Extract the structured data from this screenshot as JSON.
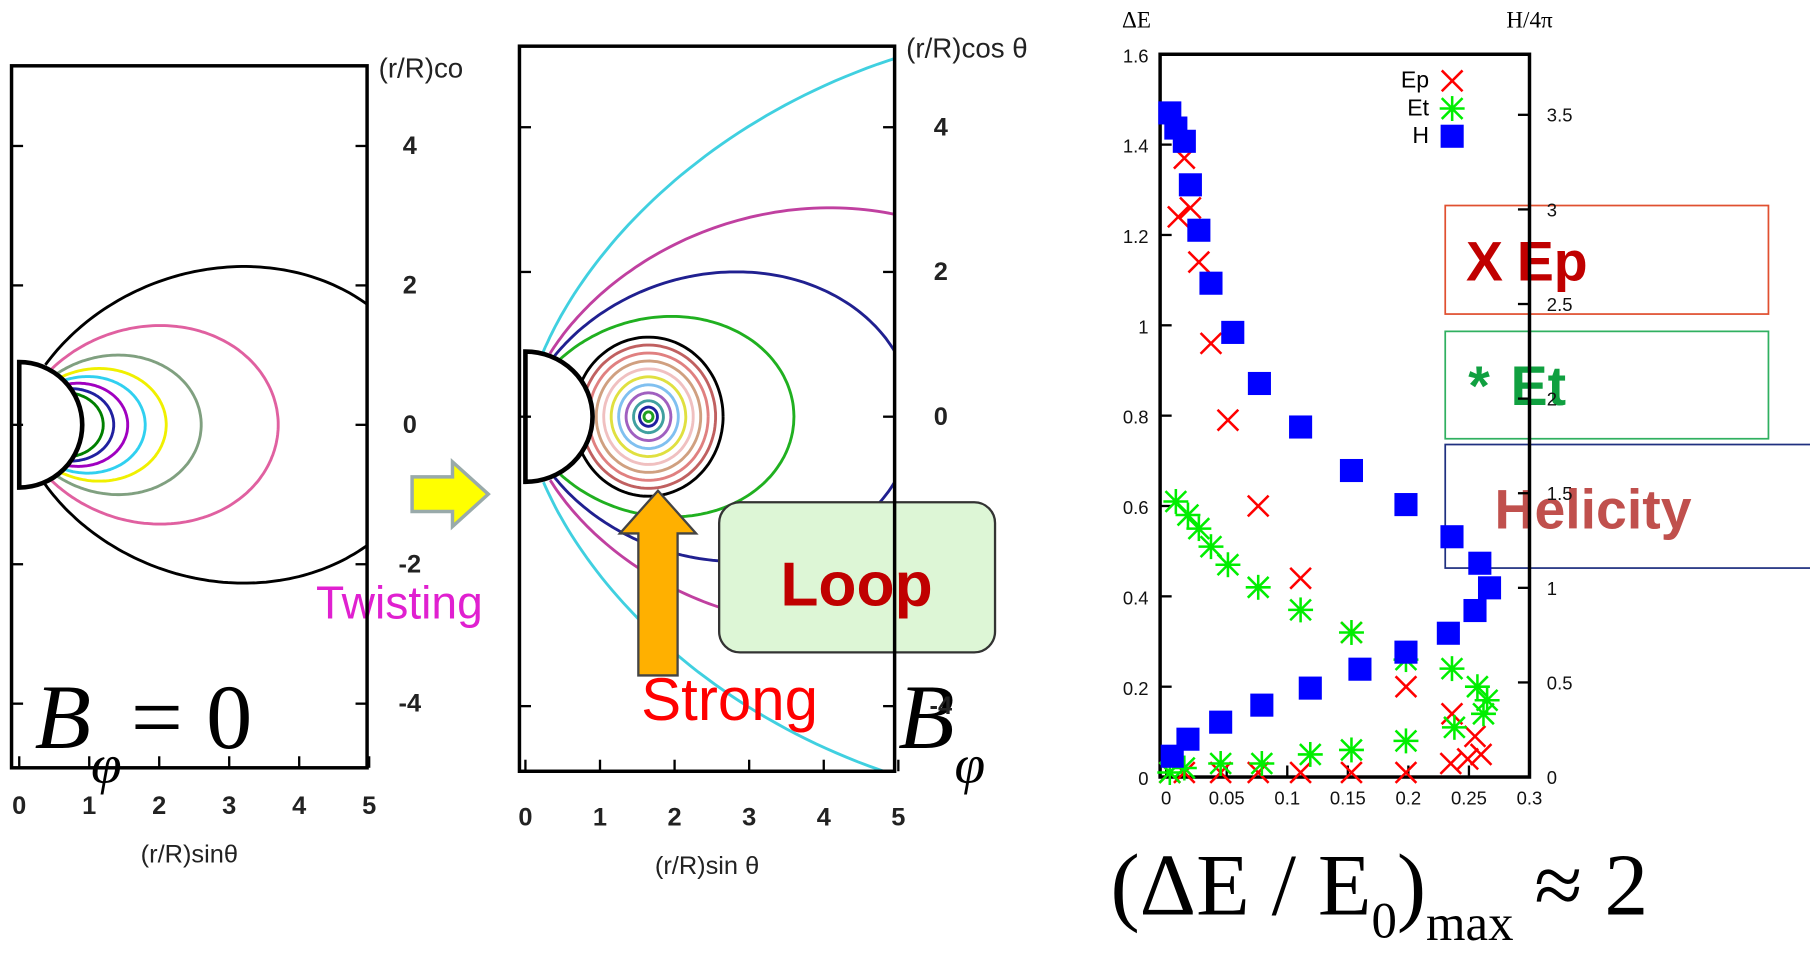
{
  "chart_data": [
    {
      "type": "contour",
      "xlabel": "(r/R)sinθ",
      "ylabel": "(r/R)co",
      "xlim": [
        -0.11,
        4.97
      ],
      "ylim": [
        -4.92,
        5.15
      ],
      "xticks": [
        0,
        1,
        2,
        3,
        4,
        5
      ],
      "yticks": [
        4,
        2,
        0,
        -2,
        -4
      ]
    },
    {
      "type": "contour",
      "xlabel": "(r/R)sin θ",
      "ylabel": "(r/R)cos θ",
      "xlim": [
        -0.08,
        4.95
      ],
      "ylim": [
        -4.9,
        5.12
      ],
      "xticks": [
        0,
        1,
        2,
        3,
        4,
        5
      ],
      "yticks": [
        4,
        2,
        0,
        -4
      ]
    },
    {
      "type": "scatter",
      "ylabel": "ΔE",
      "y2label": "H/4π",
      "legend": "upper right",
      "xlim": [
        -0.005,
        0.3
      ],
      "ylim": [
        0,
        1.6
      ],
      "y2lim": [
        0,
        3.82
      ],
      "xticks": [
        0,
        0.05,
        0.1,
        0.15,
        0.2,
        0.25,
        0.3
      ],
      "yticks": [
        0,
        0.2,
        0.4,
        0.6,
        0.8,
        1,
        1.2,
        1.4,
        1.6
      ],
      "y2ticks": [
        0,
        0.5,
        1,
        1.5,
        2,
        2.5,
        3,
        3.5
      ],
      "series": [
        {
          "name": "Ep",
          "color": "#ff0000",
          "marker": "x",
          "x": [
            0.01,
            0.015,
            0.02,
            0.027,
            0.037,
            0.051,
            0.076,
            0.111,
            0.153,
            0.198,
            0.236,
            0.255,
            0.26,
            0.249,
            0.235,
            0.198,
            0.153,
            0.111,
            0.076,
            0.045,
            0.015,
            0.003
          ],
          "values": [
            1.24,
            1.37,
            1.26,
            1.14,
            0.96,
            0.79,
            0.6,
            0.44,
            0.32,
            0.2,
            0.14,
            0.09,
            0.05,
            0.04,
            0.03,
            0.01,
            0.01,
            0.01,
            0.01,
            0.01,
            0.01,
            0.01
          ]
        },
        {
          "name": "Et",
          "color": "#00ee00",
          "marker": "asterisk",
          "x": [
            0.008,
            0.018,
            0.027,
            0.037,
            0.051,
            0.076,
            0.111,
            0.153,
            0.198,
            0.236,
            0.257,
            0.265,
            0.262,
            0.238,
            0.198,
            0.153,
            0.119,
            0.079,
            0.045,
            0.015,
            0.003
          ],
          "values": [
            0.61,
            0.58,
            0.55,
            0.51,
            0.47,
            0.42,
            0.37,
            0.32,
            0.26,
            0.24,
            0.2,
            0.17,
            0.14,
            0.11,
            0.08,
            0.06,
            0.05,
            0.03,
            0.03,
            0.02,
            0.01
          ]
        },
        {
          "name": "H",
          "color": "#0000ff",
          "marker": "square",
          "axis": "y2",
          "x": [
            0.003,
            0.008,
            0.015,
            0.02,
            0.027,
            0.037,
            0.055,
            0.077,
            0.111,
            0.153,
            0.198,
            0.236,
            0.259,
            0.267,
            0.255,
            0.233,
            0.198,
            0.16,
            0.119,
            0.079,
            0.045,
            0.018,
            0.005
          ],
          "values": [
            3.51,
            3.43,
            3.36,
            3.13,
            2.89,
            2.61,
            2.35,
            2.08,
            1.85,
            1.62,
            1.44,
            1.27,
            1.13,
            1.0,
            0.88,
            0.76,
            0.66,
            0.57,
            0.47,
            0.38,
            0.29,
            0.2,
            0.11
          ]
        }
      ]
    }
  ],
  "annotations": {
    "b_left": {
      "base": "B",
      "sub": "φ",
      "rest": "= 0"
    },
    "b_right": {
      "base": "B",
      "sub": "φ"
    },
    "twisting": "Twisting",
    "strong": "Strong",
    "loop": "Loop",
    "ep_box": {
      "symbol": "X",
      "label": "Ep"
    },
    "et_box": {
      "symbol": "*",
      "label": "Et"
    },
    "helicity": "Helicity",
    "formula": {
      "main": "(ΔE / E",
      "sub0": "0",
      "close": ")",
      "sub": "max",
      "rest": "≈ 2"
    }
  }
}
